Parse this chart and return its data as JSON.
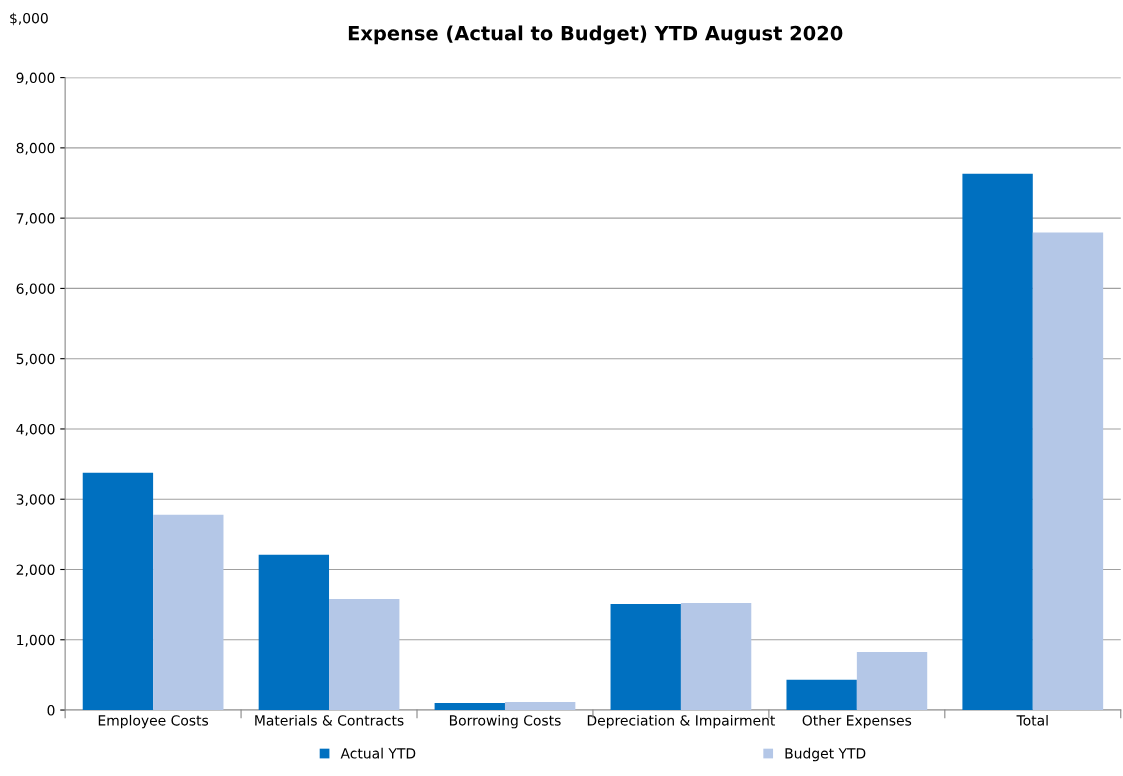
{
  "chart_data": {
    "type": "bar",
    "title": "Expense (Actual to Budget) YTD August 2020",
    "ylabel": "$,000",
    "categories": [
      "Employee Costs",
      "Materials & Contracts",
      "Borrowing Costs",
      "Depreciation & Impairment",
      "Other Expenses",
      "Total"
    ],
    "series": [
      {
        "name": "Actual YTD",
        "color": "#0070c0",
        "values": [
          3375,
          2210,
          100,
          1510,
          430,
          7630
        ]
      },
      {
        "name": "Budget YTD",
        "color": "#b4c7e7",
        "values": [
          2780,
          1580,
          115,
          1525,
          825,
          6795
        ]
      }
    ],
    "ylim": [
      0,
      9000
    ],
    "yticks": [
      {
        "value": 0,
        "label": "0"
      },
      {
        "value": 1000,
        "label": "1,000"
      },
      {
        "value": 2000,
        "label": "2,000"
      },
      {
        "value": 3000,
        "label": "3,000"
      },
      {
        "value": 4000,
        "label": "4,000"
      },
      {
        "value": 5000,
        "label": "5,000"
      },
      {
        "value": 6000,
        "label": "6,000"
      },
      {
        "value": 7000,
        "label": "7,000"
      },
      {
        "value": 8000,
        "label": "8,000"
      },
      {
        "value": 9000,
        "label": "9,000"
      }
    ],
    "grid": "y",
    "legend": "bottom"
  }
}
